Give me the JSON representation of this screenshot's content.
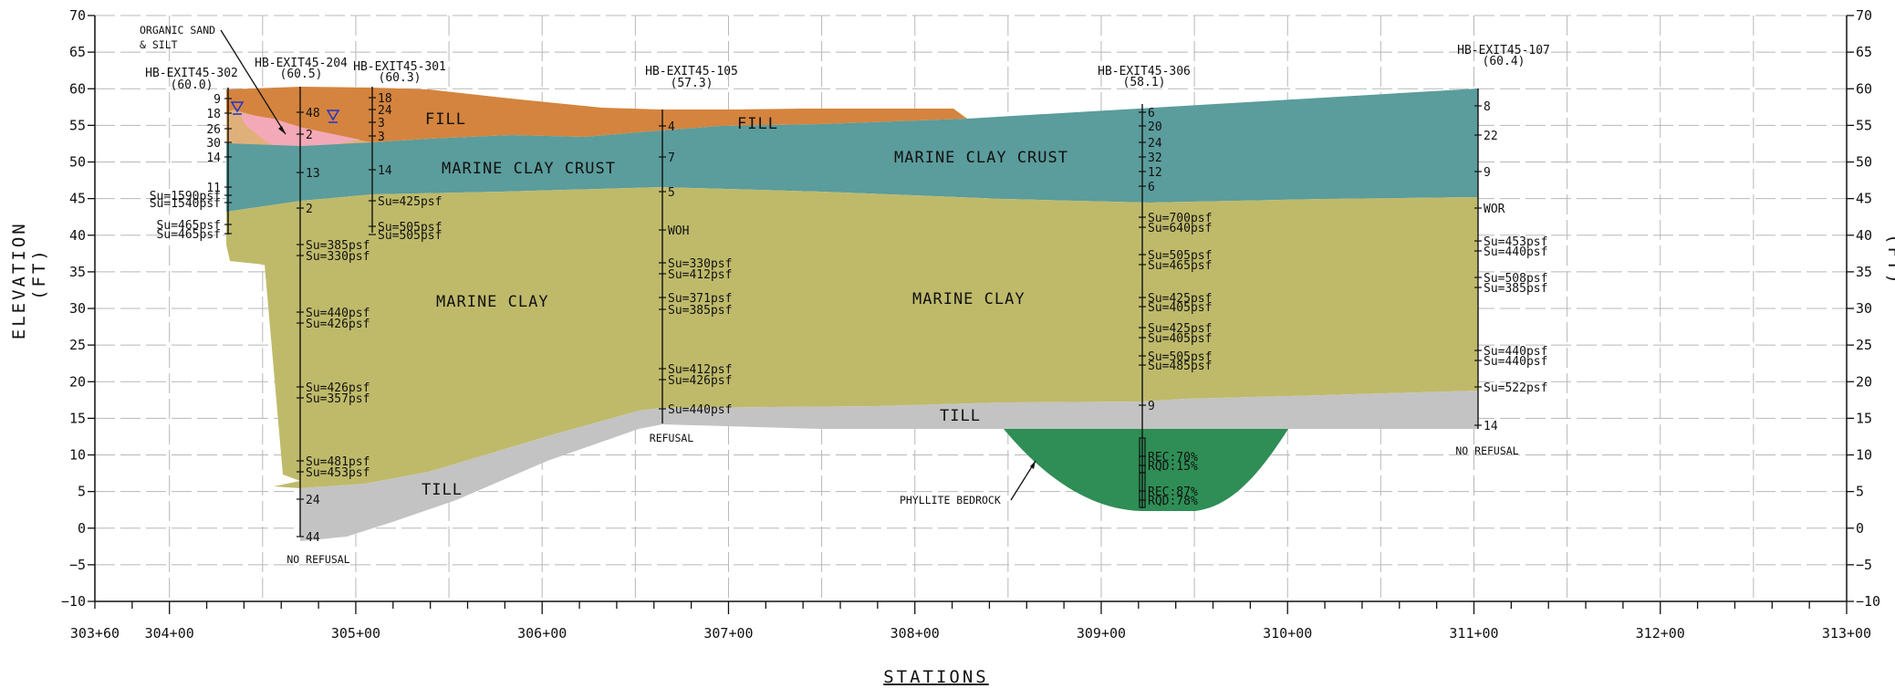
{
  "axes": {
    "y_left_title": "ELEVATION\n(FT)",
    "y_right_title": "(FT)",
    "x_title": "STATIONS",
    "y_ticks": [
      "70",
      "65",
      "60",
      "55",
      "50",
      "45",
      "40",
      "35",
      "30",
      "25",
      "20",
      "15",
      "10",
      "5",
      "0",
      "−5",
      "−10"
    ],
    "x_ticks": [
      "303+60",
      "304+00",
      "305+00",
      "306+00",
      "307+00",
      "308+00",
      "309+00",
      "310+00",
      "311+00",
      "312+00",
      "313+00"
    ]
  },
  "colors": {
    "fill": "#D4843E",
    "organic": "#F3A9B7",
    "sand": "#E0B07A",
    "crust": "#5B9C9C",
    "clay": "#BFBA6A",
    "till": "#C3C3C3",
    "bedrock": "#2E8E55",
    "grid": "#B8B8B8"
  },
  "layers": {
    "fill_1": "FILL",
    "fill_2": "FILL",
    "crust_1": "MARINE CLAY CRUST",
    "crust_2": "MARINE CLAY CRUST",
    "clay_1": "MARINE CLAY",
    "clay_2": "MARINE CLAY",
    "till_1": "TILL",
    "till_2": "TILL"
  },
  "notes": {
    "organic_line1": "ORGANIC SAND",
    "organic_line2": "& SILT",
    "bedrock": "PHYLLITE BEDROCK"
  },
  "borings": [
    {
      "id": "HB-EXIT45-302",
      "elev": "(60.0)",
      "end": "",
      "values": [
        "9",
        "18",
        "26",
        "30",
        "14",
        "11",
        "Su=1590psf",
        "Su=1540psf",
        "Su=465psf",
        "Su=465psf"
      ]
    },
    {
      "id": "HB-EXIT45-204",
      "elev": "(60.5)",
      "end": "NO REFUSAL",
      "values": [
        "48",
        "2",
        "13",
        "2",
        "Su=385psf",
        "Su=330psf",
        "Su=440psf",
        "Su=426psf",
        "Su=426psf",
        "Su=357psf",
        "Su=481psf",
        "Su=453psf",
        "24",
        "44"
      ]
    },
    {
      "id": "HB-EXIT45-301",
      "elev": "(60.3)",
      "end": "",
      "values": [
        "18",
        "24",
        "3",
        "3",
        "14",
        "Su=425psf",
        "Su=505psf",
        "Su=505psf"
      ]
    },
    {
      "id": "HB-EXIT45-105",
      "elev": "(57.3)",
      "end": "REFUSAL",
      "values": [
        "4",
        "7",
        "5",
        "WOH",
        "Su=330psf",
        "Su=412psf",
        "Su=371psf",
        "Su=385psf",
        "Su=412psf",
        "Su=426psf",
        "Su=440psf"
      ]
    },
    {
      "id": "HB-EXIT45-306",
      "elev": "(58.1)",
      "end": "",
      "values": [
        "6",
        "20",
        "24",
        "32",
        "12",
        "6",
        "Su=700psf",
        "Su=640psf",
        "Su=505psf",
        "Su=465psf",
        "Su=425psf",
        "Su=405psf",
        "Su=425psf",
        "Su=405psf",
        "Su=505psf",
        "Su=485psf",
        "9",
        "REC:70%",
        "RQD:15%",
        "REC:87%",
        "RQD:78%"
      ]
    },
    {
      "id": "HB-EXIT45-107",
      "elev": "(60.4)",
      "end": "NO REFUSAL",
      "values": [
        "8",
        "22",
        "9",
        "WOR",
        "Su=453psf",
        "Su=440psf",
        "Su=508psf",
        "Su=385psf",
        "Su=440psf",
        "Su=440psf",
        "Su=522psf",
        "14"
      ]
    }
  ]
}
